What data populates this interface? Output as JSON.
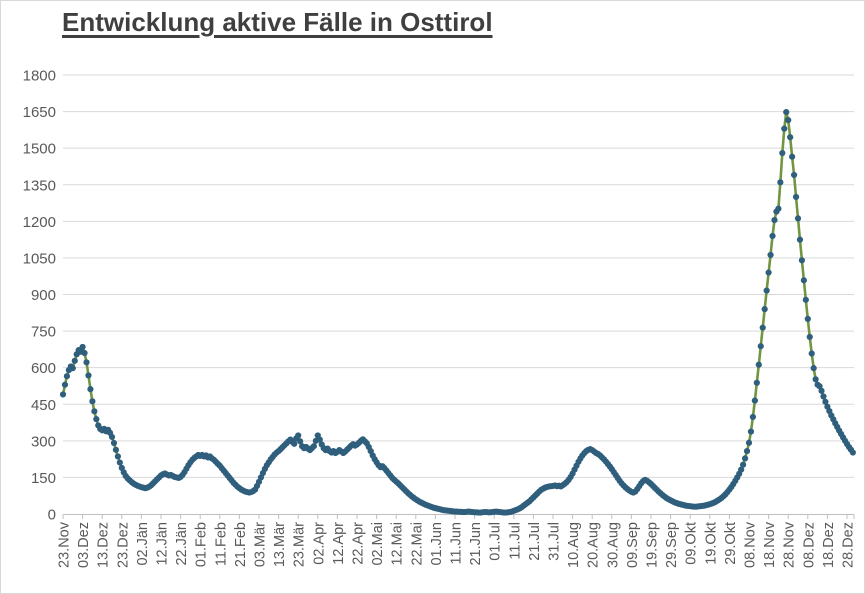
{
  "title": "Entwicklung aktive Fälle in Osttirol",
  "colors": {
    "line": "#719540",
    "marker": "#2f5f7c",
    "gridline": "#d9d9d9",
    "axis_line": "#bfbfbf",
    "axis_text": "#595959",
    "title_text": "#3f3f3f",
    "background": "#ffffff"
  },
  "chart_data": {
    "type": "line",
    "title": "Entwicklung aktive Fälle in Osttirol",
    "xlabel": "",
    "ylabel": "",
    "grid": "horizontal",
    "legend": "none",
    "ylim": [
      0,
      1800
    ],
    "y_ticks": [
      0,
      150,
      300,
      450,
      600,
      750,
      900,
      1050,
      1200,
      1350,
      1500,
      1650,
      1800
    ],
    "x_tick_interval_days": 10,
    "x_tick_labels": [
      "23.Nov",
      "03.Dez",
      "13.Dez",
      "23.Dez",
      "02.Jän",
      "12.Jän",
      "22.Jän",
      "01.Feb",
      "11.Feb",
      "21.Feb",
      "03.Mär",
      "13.Mär",
      "23.Mär",
      "02.Apr",
      "12.Apr",
      "22.Apr",
      "02.Mai",
      "12.Mai",
      "22.Mai",
      "01.Jun",
      "11.Jun",
      "21.Jun",
      "01.Jul",
      "11.Jul",
      "21.Jul",
      "31.Jul",
      "10.Aug",
      "20.Aug",
      "30.Aug",
      "09.Sep",
      "19.Sep",
      "29.Sep",
      "09.Okt",
      "19.Okt",
      "29.Okt",
      "08.Nov",
      "18.Nov",
      "28.Nov",
      "08.Dez",
      "18.Dez",
      "28.Dez"
    ],
    "series": [
      {
        "name": "aktive Fälle",
        "marker": "circle",
        "values": [
          490,
          530,
          565,
          590,
          605,
          598,
          628,
          655,
          672,
          665,
          685,
          660,
          622,
          568,
          512,
          462,
          421,
          389,
          363,
          349,
          343,
          349,
          339,
          345,
          333,
          316,
          291,
          263,
          236,
          211,
          189,
          171,
          156,
          146,
          138,
          131,
          125,
          120,
          116,
          113,
          110,
          108,
          106,
          108,
          112,
          118,
          126,
          134,
          142,
          150,
          158,
          163,
          166,
          162,
          158,
          160,
          156,
          152,
          150,
          148,
          152,
          160,
          172,
          186,
          200,
          212,
          222,
          230,
          236,
          242,
          238,
          242,
          236,
          240,
          232,
          236,
          228,
          222,
          214,
          206,
          198,
          188,
          178,
          168,
          158,
          148,
          138,
          128,
          120,
          112,
          106,
          100,
          96,
          92,
          90,
          88,
          90,
          94,
          100,
          115,
          132,
          150,
          168,
          185,
          200,
          212,
          224,
          234,
          244,
          252,
          258,
          266,
          274,
          282,
          290,
          298,
          305,
          296,
          288,
          310,
          322,
          298,
          278,
          270,
          275,
          268,
          262,
          270,
          278,
          300,
          322,
          305,
          285,
          270,
          262,
          268,
          258,
          252,
          258,
          250,
          255,
          262,
          256,
          250,
          256,
          264,
          272,
          280,
          286,
          280,
          285,
          292,
          300,
          306,
          298,
          290,
          275,
          258,
          240,
          225,
          212,
          200,
          192,
          196,
          188,
          178,
          168,
          158,
          148,
          140,
          133,
          126,
          118,
          110,
          102,
          94,
          86,
          79,
          72,
          66,
          60,
          55,
          50,
          46,
          42,
          38,
          35,
          32,
          29,
          26,
          24,
          22,
          20,
          18,
          16,
          15,
          14,
          13,
          12,
          11,
          10,
          10,
          9,
          9,
          8,
          8,
          9,
          10,
          9,
          8,
          7,
          7,
          6,
          6,
          7,
          8,
          8,
          7,
          7,
          8,
          9,
          10,
          9,
          8,
          7,
          6,
          6,
          7,
          8,
          10,
          13,
          16,
          19,
          23,
          28,
          34,
          40,
          46,
          52,
          60,
          68,
          76,
          84,
          92,
          99,
          104,
          108,
          111,
          113,
          114,
          115,
          117,
          114,
          116,
          113,
          118,
          124,
          131,
          140,
          152,
          166,
          182,
          198,
          214,
          228,
          240,
          250,
          258,
          263,
          266,
          262,
          256,
          250,
          246,
          240,
          232,
          224,
          215,
          205,
          195,
          184,
          172,
          160,
          148,
          136,
          126,
          117,
          109,
          102,
          96,
          91,
          88,
          92,
          102,
          114,
          126,
          135,
          140,
          136,
          130,
          123,
          115,
          107,
          99,
          91,
          84,
          77,
          71,
          65,
          60,
          56,
          52,
          48,
          45,
          42,
          40,
          38,
          36,
          34,
          33,
          32,
          31,
          30,
          30,
          31,
          32,
          33,
          34,
          36,
          38,
          40,
          43,
          46,
          50,
          55,
          60,
          66,
          73,
          81,
          90,
          100,
          111,
          123,
          136,
          150,
          165,
          182,
          202,
          228,
          258,
          292,
          338,
          398,
          465,
          538,
          612,
          688,
          764,
          840,
          916,
          990,
          1062,
          1140,
          1205,
          1240,
          1252,
          1360,
          1480,
          1580,
          1648,
          1615,
          1545,
          1465,
          1390,
          1300,
          1212,
          1125,
          1040,
          958,
          878,
          800,
          726,
          658,
          598,
          552,
          530,
          524,
          505,
          482,
          460,
          440,
          422,
          404,
          388,
          372,
          357,
          342,
          328,
          314,
          300,
          287,
          275,
          264,
          252
        ]
      }
    ]
  }
}
